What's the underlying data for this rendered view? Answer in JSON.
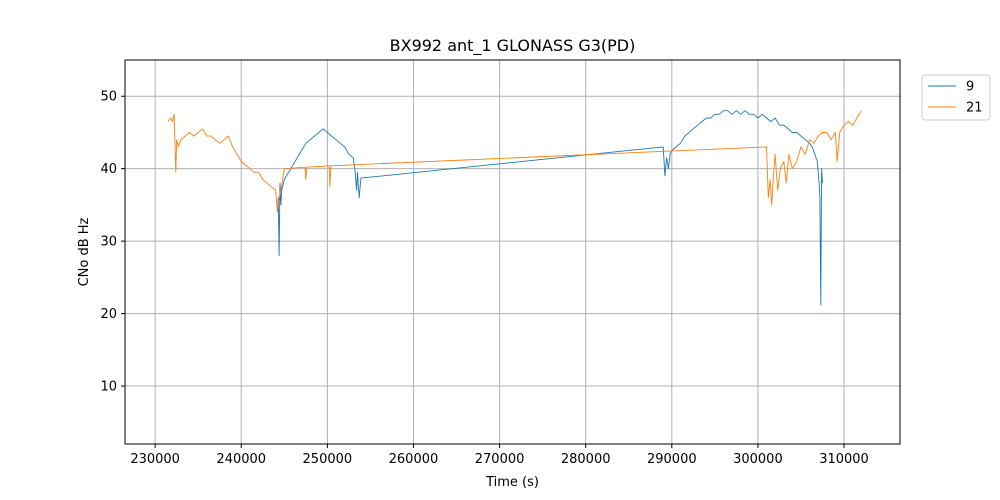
{
  "chart_data": {
    "type": "line",
    "title": "BX992 ant_1 GLONASS G3(PD)",
    "xlabel": "Time (s)",
    "ylabel": "CNo dB Hz",
    "xlim": [
      226500,
      316500
    ],
    "ylim": [
      2,
      55
    ],
    "xticks": [
      230000,
      240000,
      250000,
      260000,
      270000,
      280000,
      290000,
      300000,
      310000
    ],
    "xtick_labels": [
      "230000",
      "240000",
      "250000",
      "260000",
      "270000",
      "280000",
      "290000",
      "300000",
      "310000"
    ],
    "yticks": [
      10,
      20,
      30,
      40,
      50
    ],
    "ytick_labels": [
      "10",
      "20",
      "30",
      "40",
      "50"
    ],
    "grid": true,
    "legend_position": "outside-top-right",
    "series": [
      {
        "name": "9",
        "color": "#1f77b4",
        "x": [
          244200,
          244300,
          244400,
          244500,
          244600,
          244700,
          245000,
          245500,
          246000,
          246500,
          247000,
          247500,
          248000,
          248500,
          249000,
          249500,
          250000,
          250500,
          251000,
          251500,
          252000,
          252500,
          253000,
          253200,
          253400,
          253500,
          253700,
          253900,
          289000,
          289200,
          289400,
          289600,
          289800,
          290000,
          290500,
          291000,
          291500,
          292000,
          292500,
          293000,
          293500,
          294000,
          294500,
          295000,
          295500,
          296000,
          296500,
          297000,
          297500,
          298000,
          298500,
          299000,
          299500,
          300000,
          300500,
          301000,
          301500,
          302000,
          302500,
          303000,
          303500,
          304000,
          304500,
          305000,
          305500,
          306000,
          306300,
          306600,
          306900,
          307100,
          307200,
          307300,
          307400,
          307500
        ],
        "y": [
          34,
          36,
          28,
          38,
          35,
          37,
          38.5,
          39.5,
          40.5,
          41.5,
          42.5,
          43.5,
          44,
          44.5,
          45,
          45.5,
          45,
          44.5,
          44,
          43.5,
          43,
          42,
          41.5,
          40,
          37,
          39.5,
          36,
          38.7,
          43,
          39,
          41.5,
          40,
          42,
          42.5,
          43,
          43.5,
          44.5,
          45,
          45.5,
          46,
          46.5,
          47,
          47,
          47.5,
          47.5,
          48,
          48,
          47.5,
          48,
          47.5,
          48,
          47.5,
          47.5,
          47,
          47.5,
          47,
          46.5,
          47,
          46,
          46,
          45.5,
          45,
          45,
          44.5,
          44,
          43.5,
          43,
          42,
          41,
          38,
          36,
          21.2,
          40,
          38
        ]
      },
      {
        "name": "21",
        "color": "#ff7f0e",
        "x": [
          231500,
          231800,
          232000,
          232200,
          232400,
          232500,
          232700,
          233000,
          233500,
          234000,
          234500,
          235000,
          235500,
          236000,
          236500,
          237000,
          237500,
          238000,
          238500,
          239000,
          239500,
          240000,
          240500,
          241000,
          241500,
          242000,
          242500,
          243000,
          243500,
          244000,
          244200,
          244400,
          244600,
          244800,
          245000,
          247400,
          247500,
          247600,
          250200,
          250300,
          250400,
          301000,
          301200,
          301400,
          301600,
          301800,
          302000,
          302300,
          302600,
          303000,
          303300,
          303600,
          304000,
          304500,
          305000,
          305500,
          306000,
          306500,
          307000,
          307500,
          308000,
          308500,
          309000,
          309200,
          309500,
          310000,
          310500,
          311000,
          311500,
          312000
        ],
        "y": [
          46.5,
          47,
          46.5,
          47.5,
          39.5,
          44,
          43,
          44,
          44.5,
          45,
          44.5,
          45,
          45.5,
          44.5,
          44.5,
          44,
          43.5,
          44,
          44.5,
          43,
          42,
          41,
          40.5,
          40,
          39.5,
          39.5,
          38.5,
          38,
          37.5,
          37,
          34,
          36,
          37,
          38.5,
          40,
          40.2,
          38.5,
          40.2,
          40.4,
          37.5,
          40.4,
          43,
          36,
          38.5,
          35,
          39,
          42,
          37,
          40,
          41,
          38,
          42,
          40,
          41,
          43,
          42,
          44,
          43.5,
          44.5,
          45,
          45,
          44,
          45,
          41,
          45,
          46,
          46.5,
          46,
          47,
          48
        ]
      }
    ]
  }
}
